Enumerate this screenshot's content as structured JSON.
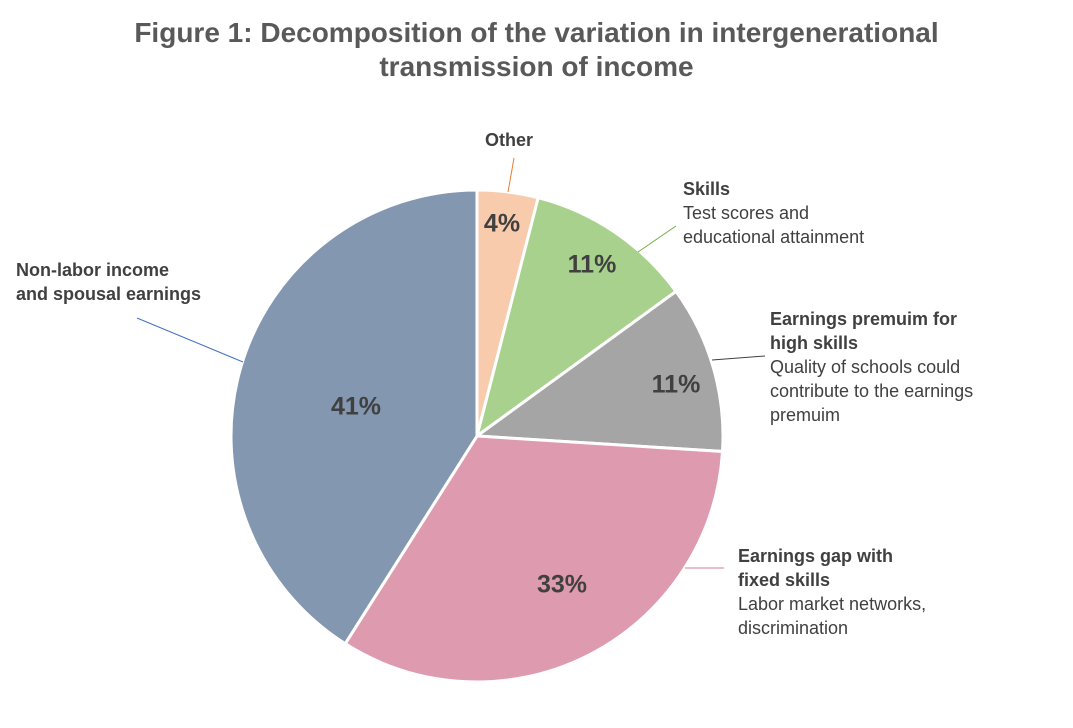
{
  "chart_data": {
    "type": "pie",
    "title_line1": "Figure 1: Decomposition of the variation in intergenerational",
    "title_line2": "transmission of income",
    "slices": [
      {
        "key": "other",
        "name": "Other",
        "description_lines": [],
        "value": 4,
        "label": "4%",
        "color": "#F8CBAD"
      },
      {
        "key": "skills",
        "name": "Skills",
        "description_lines": [
          "Test scores and",
          "educational attainment"
        ],
        "value": 11,
        "label": "11%",
        "color": "#A9D18E"
      },
      {
        "key": "earnings-premium",
        "name_lines": [
          "Earnings premuim for",
          "high skills"
        ],
        "description_lines": [
          "Quality of schools could",
          "contribute to the earnings",
          "premuim"
        ],
        "value": 11,
        "label": "11%",
        "color": "#A5A5A5"
      },
      {
        "key": "earnings-gap",
        "name_lines": [
          "Earnings gap with",
          "fixed skills"
        ],
        "description_lines": [
          "Labor market networks,",
          "discrimination"
        ],
        "value": 33,
        "label": "33%",
        "color": "#DE9AAE"
      },
      {
        "key": "non-labor",
        "name_lines": [
          "Non-labor income",
          "and spousal earnings"
        ],
        "description_lines": [],
        "value": 41,
        "label": "41%",
        "color": "#8497B0"
      }
    ],
    "leader_colors": {
      "other": "#ED7D31",
      "skills": "#70AD47",
      "earnings-premium": "#404040",
      "earnings-gap": "#DE7A98",
      "non-labor": "#4472C4"
    }
  }
}
